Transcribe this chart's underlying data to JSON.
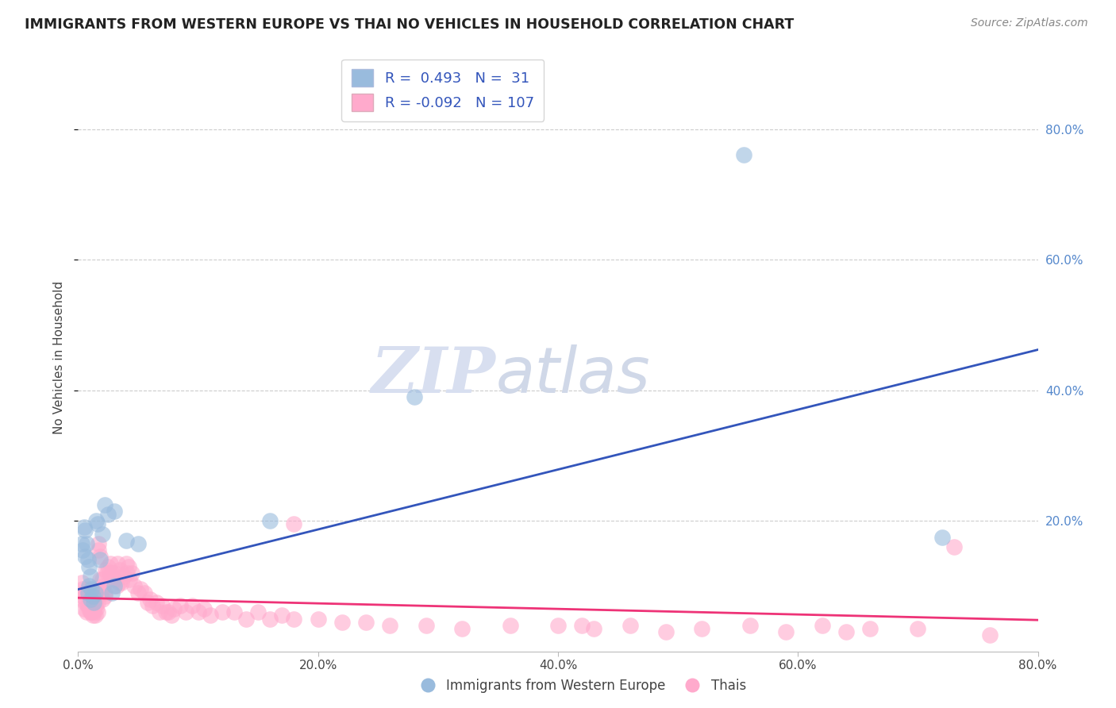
{
  "title": "IMMIGRANTS FROM WESTERN EUROPE VS THAI NO VEHICLES IN HOUSEHOLD CORRELATION CHART",
  "source": "Source: ZipAtlas.com",
  "ylabel": "No Vehicles in Household",
  "xlim": [
    0.0,
    0.8
  ],
  "ylim": [
    0.0,
    0.9
  ],
  "xticks": [
    0.0,
    0.2,
    0.4,
    0.6,
    0.8
  ],
  "yticks": [
    0.2,
    0.4,
    0.6,
    0.8
  ],
  "xtick_labels": [
    "0.0%",
    "20.0%",
    "40.0%",
    "60.0%",
    "80.0%"
  ],
  "ytick_labels": [
    "20.0%",
    "40.0%",
    "60.0%",
    "80.0%"
  ],
  "ytick_labels_right": [
    "20.0%",
    "40.0%",
    "60.0%",
    "80.0%"
  ],
  "legend_blue_label": "Immigrants from Western Europe",
  "legend_pink_label": "Thais",
  "legend_blue_r": "0.493",
  "legend_blue_n": "31",
  "legend_pink_r": "-0.092",
  "legend_pink_n": "107",
  "blue_color": "#99BBDD",
  "pink_color": "#FFAACC",
  "blue_line_color": "#3355BB",
  "pink_line_color": "#EE3377",
  "watermark_zip": "ZIP",
  "watermark_atlas": "atlas",
  "blue_scatter_x": [
    0.003,
    0.004,
    0.005,
    0.006,
    0.006,
    0.007,
    0.008,
    0.008,
    0.009,
    0.009,
    0.01,
    0.01,
    0.011,
    0.012,
    0.013,
    0.014,
    0.015,
    0.016,
    0.018,
    0.02,
    0.022,
    0.025,
    0.028,
    0.03,
    0.04,
    0.05,
    0.03,
    0.16,
    0.28,
    0.555,
    0.72
  ],
  "blue_scatter_y": [
    0.165,
    0.155,
    0.19,
    0.145,
    0.185,
    0.165,
    0.14,
    0.09,
    0.13,
    0.1,
    0.115,
    0.08,
    0.095,
    0.085,
    0.075,
    0.09,
    0.2,
    0.195,
    0.14,
    0.18,
    0.225,
    0.21,
    0.09,
    0.1,
    0.17,
    0.165,
    0.215,
    0.2,
    0.39,
    0.76,
    0.175
  ],
  "pink_scatter_x": [
    0.003,
    0.004,
    0.004,
    0.005,
    0.005,
    0.006,
    0.006,
    0.007,
    0.007,
    0.008,
    0.008,
    0.009,
    0.009,
    0.01,
    0.01,
    0.011,
    0.011,
    0.012,
    0.012,
    0.013,
    0.013,
    0.014,
    0.014,
    0.015,
    0.015,
    0.016,
    0.016,
    0.017,
    0.017,
    0.018,
    0.018,
    0.019,
    0.019,
    0.02,
    0.02,
    0.021,
    0.022,
    0.022,
    0.023,
    0.024,
    0.025,
    0.026,
    0.027,
    0.028,
    0.028,
    0.03,
    0.031,
    0.032,
    0.033,
    0.034,
    0.035,
    0.036,
    0.038,
    0.04,
    0.041,
    0.042,
    0.043,
    0.045,
    0.047,
    0.05,
    0.052,
    0.055,
    0.058,
    0.06,
    0.062,
    0.065,
    0.068,
    0.07,
    0.073,
    0.075,
    0.078,
    0.08,
    0.085,
    0.09,
    0.095,
    0.1,
    0.105,
    0.11,
    0.12,
    0.13,
    0.14,
    0.15,
    0.16,
    0.17,
    0.18,
    0.2,
    0.22,
    0.24,
    0.26,
    0.29,
    0.32,
    0.36,
    0.4,
    0.43,
    0.46,
    0.49,
    0.52,
    0.56,
    0.59,
    0.62,
    0.64,
    0.66,
    0.7,
    0.73,
    0.76,
    0.42,
    0.18
  ],
  "pink_scatter_y": [
    0.105,
    0.095,
    0.085,
    0.09,
    0.065,
    0.09,
    0.075,
    0.075,
    0.06,
    0.095,
    0.07,
    0.085,
    0.065,
    0.085,
    0.06,
    0.07,
    0.06,
    0.075,
    0.055,
    0.065,
    0.06,
    0.07,
    0.055,
    0.08,
    0.065,
    0.075,
    0.06,
    0.165,
    0.155,
    0.145,
    0.11,
    0.095,
    0.09,
    0.08,
    0.11,
    0.1,
    0.09,
    0.085,
    0.125,
    0.12,
    0.13,
    0.12,
    0.135,
    0.12,
    0.115,
    0.11,
    0.12,
    0.1,
    0.135,
    0.105,
    0.125,
    0.105,
    0.115,
    0.135,
    0.12,
    0.13,
    0.11,
    0.12,
    0.1,
    0.09,
    0.095,
    0.09,
    0.075,
    0.08,
    0.07,
    0.075,
    0.06,
    0.07,
    0.06,
    0.06,
    0.055,
    0.065,
    0.07,
    0.06,
    0.07,
    0.06,
    0.065,
    0.055,
    0.06,
    0.06,
    0.05,
    0.06,
    0.05,
    0.055,
    0.05,
    0.05,
    0.045,
    0.045,
    0.04,
    0.04,
    0.035,
    0.04,
    0.04,
    0.035,
    0.04,
    0.03,
    0.035,
    0.04,
    0.03,
    0.04,
    0.03,
    0.035,
    0.035,
    0.16,
    0.025,
    0.04,
    0.195
  ],
  "blue_line_x0": 0.0,
  "blue_line_y0": 0.095,
  "blue_line_x1": 0.8,
  "blue_line_y1": 0.462,
  "pink_line_x0": 0.0,
  "pink_line_y0": 0.082,
  "pink_line_x1": 0.8,
  "pink_line_y1": 0.048
}
